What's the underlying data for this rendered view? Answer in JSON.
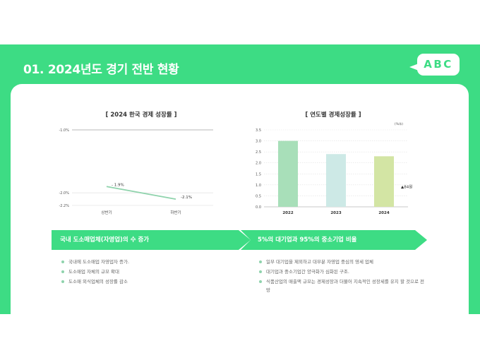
{
  "header": {
    "title": "01. 2024년도 경기 전반 현황",
    "logo": "ABC"
  },
  "colors": {
    "accent": "#3ddc84",
    "line": "#8fd3ac"
  },
  "chart_data": [
    {
      "type": "line",
      "title": "[ 2024 한국 경제 성장률 ]",
      "categories": [
        "상반기",
        "하반기"
      ],
      "series": [
        {
          "values": [
            -1.9,
            -2.1
          ],
          "labels": [
            "- 1.9%",
            "-2.1%"
          ]
        }
      ],
      "ylim": [
        -2.2,
        -1.0
      ],
      "yticks": [
        -1.0,
        -2.0,
        -2.2
      ],
      "ytick_labels": [
        "-1.0%",
        "-2.0%",
        "-2.2%"
      ],
      "grid": true
    },
    {
      "type": "bar",
      "title": "[ 연도별 경제성장률 ]",
      "unit": "(%/$)",
      "categories": [
        "2022",
        "2023",
        "2024"
      ],
      "values": [
        3.0,
        2.4,
        2.3
      ],
      "bar_colors": [
        "#a8dfb9",
        "#cde9e6",
        "#d3e5a4"
      ],
      "ylim": [
        0,
        3.5
      ],
      "yticks": [
        0.0,
        0.5,
        1.0,
        1.5,
        2.0,
        2.5,
        3.0,
        3.5
      ],
      "ytick_labels": [
        "0.0",
        "0.5",
        "1.0",
        "1.5",
        "2.0",
        "2.5",
        "3.0",
        "3.5"
      ],
      "annotation": "▲84원",
      "grid": true
    }
  ],
  "sections": {
    "left": {
      "heading": "국내 도소매업체(자영업)의 수 증가",
      "bullets": [
        "국내에 도소매업 자영업자 증가.",
        "도소매업 자체의 규모 확대",
        "도소매 외식업체의 성장률 감소"
      ]
    },
    "right": {
      "heading": "5%의 대기업과 95%의 중소기업 비율",
      "bullets": [
        "일부 대기업을 제외하고 대부분 자영업 중심의 영세 업체",
        "대기업과 중소기업간 양극화가 심화된 구조.",
        "식품산업의 매출액 규모는 경제성장과 더불어 지속적인 성장세를 유지 할 것으로 전망"
      ]
    }
  }
}
